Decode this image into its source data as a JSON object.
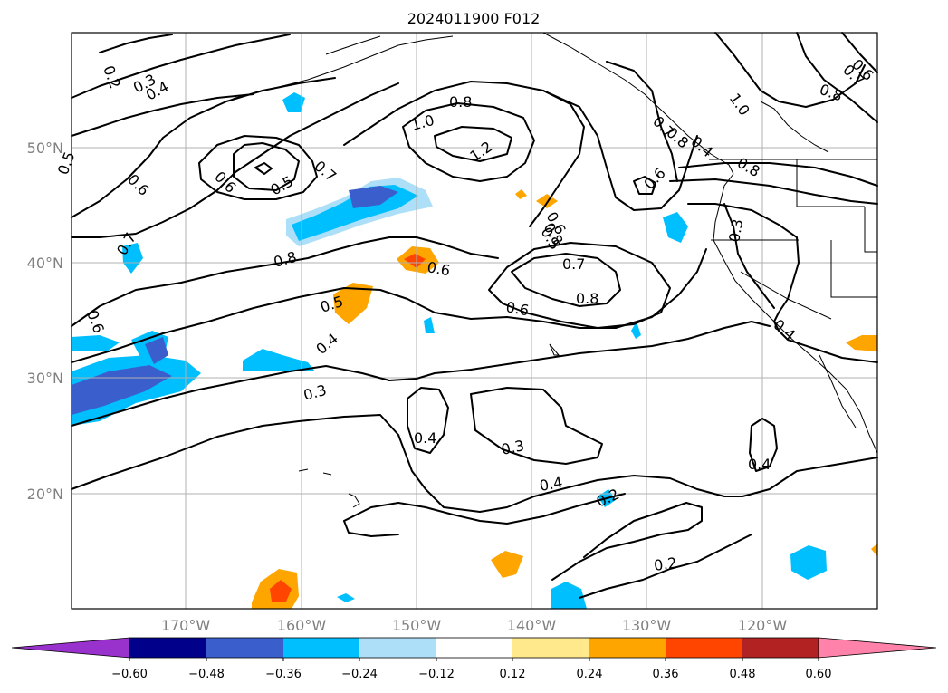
{
  "title": "2024011900 F012",
  "map": {
    "lat_labels": [
      "50°N",
      "40°N",
      "30°N",
      "20°N"
    ],
    "lon_labels": [
      "170°W",
      "160°W",
      "150°W",
      "140°W",
      "130°W",
      "120°W"
    ],
    "contour_labels": [
      "0.2",
      "0.3",
      "0.4",
      "0.5",
      "0.6",
      "0.7",
      "0.8",
      "1.0",
      "1.2",
      "0.6",
      "0.5",
      "0.7",
      "0.8",
      "0.6",
      "0.8",
      "0.6",
      "0.5",
      "0.4",
      "0.3",
      "0.4",
      "0.3",
      "0.4",
      "0.2",
      "0.2",
      "0.4",
      "0.6",
      "0.8",
      "0.7",
      "0.6",
      "0.8",
      "0.3",
      "0.4",
      "0.5",
      "0.6",
      "0.7",
      "0.8",
      "1.0",
      "0.6",
      "0.7",
      "0.8",
      "0.4"
    ]
  },
  "colorbar": {
    "ticks": [
      "−0.60",
      "−0.48",
      "−0.36",
      "−0.24",
      "−0.12",
      "0.12",
      "0.24",
      "0.36",
      "0.48",
      "0.60"
    ],
    "colors": [
      "#9932CC",
      "#00008B",
      "#3A5FCD",
      "#00BFFF",
      "#ADDFF8",
      "#FFFFFF",
      "#FFE98C",
      "#FFA500",
      "#FF4500",
      "#B22222",
      "#FF82AB"
    ]
  }
}
